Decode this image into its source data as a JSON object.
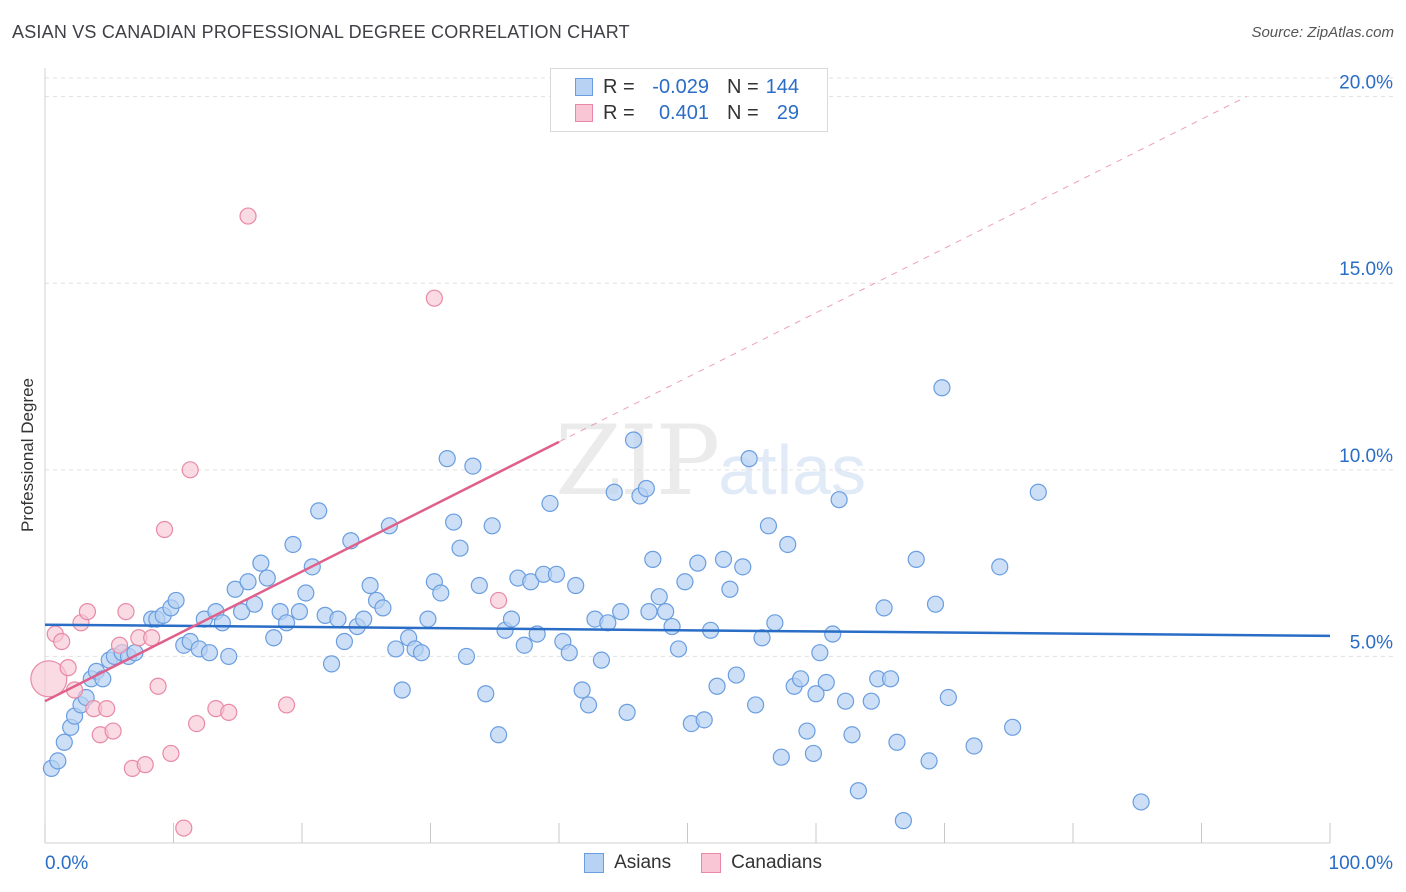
{
  "title": "ASIAN VS CANADIAN PROFESSIONAL DEGREE CORRELATION CHART",
  "source": "Source: ZipAtlas.com",
  "watermark": {
    "zip": "ZIP",
    "atlas": "atlas"
  },
  "legend": {
    "rows": [
      {
        "label": "R =",
        "r": "-0.029",
        "n_label": "N =",
        "n": "144"
      },
      {
        "label": "R =",
        "r": "0.401",
        "n_label": "N =",
        "n": "29"
      }
    ]
  },
  "bottom_legend": [
    "Asians",
    "Canadians"
  ],
  "colors": {
    "asian_fill": "#b7d2f2",
    "asian_stroke": "#6a9ee0",
    "asian_line": "#2a6dc6",
    "canadian_fill": "#f8c6d4",
    "canadian_stroke": "#e88aa7",
    "canadian_line": "#e0608c",
    "grid": "#e0e0e0",
    "tick_label": "#2a6dc6"
  },
  "chart_data": {
    "type": "scatter",
    "title": "ASIAN VS CANADIAN PROFESSIONAL DEGREE CORRELATION CHART",
    "xlabel": "",
    "ylabel": "Professional Degree",
    "xlim": [
      0,
      100
    ],
    "ylim": [
      0,
      20.5
    ],
    "x_tick_labels": [
      "0.0%",
      "100.0%"
    ],
    "y_ticks": [
      5,
      10,
      15,
      20
    ],
    "y_tick_labels": [
      "5.0%",
      "10.0%",
      "15.0%",
      "20.0%"
    ],
    "grid": "horizontal dashed",
    "legend_placement": "top-center",
    "series": [
      {
        "name": "Asians",
        "r": -0.029,
        "n": 144,
        "trend": {
          "x": [
            0,
            100
          ],
          "y": [
            5.85,
            5.55
          ],
          "style": "solid"
        },
        "points": [
          [
            0.5,
            2.0
          ],
          [
            1,
            2.2
          ],
          [
            1.5,
            2.7
          ],
          [
            2,
            3.1
          ],
          [
            2.3,
            3.4
          ],
          [
            2.8,
            3.7
          ],
          [
            3.2,
            3.9
          ],
          [
            3.6,
            4.4
          ],
          [
            4,
            4.6
          ],
          [
            4.5,
            4.4
          ],
          [
            5,
            4.9
          ],
          [
            5.4,
            5.0
          ],
          [
            6,
            5.1
          ],
          [
            6.5,
            5.0
          ],
          [
            7,
            5.1
          ],
          [
            8.3,
            6.0
          ],
          [
            8.7,
            6.0
          ],
          [
            9.2,
            6.1
          ],
          [
            9.8,
            6.3
          ],
          [
            10.2,
            6.5
          ],
          [
            10.8,
            5.3
          ],
          [
            11.3,
            5.4
          ],
          [
            12,
            5.2
          ],
          [
            12.4,
            6.0
          ],
          [
            12.8,
            5.1
          ],
          [
            13.3,
            6.2
          ],
          [
            13.8,
            5.9
          ],
          [
            14.3,
            5.0
          ],
          [
            14.8,
            6.8
          ],
          [
            15.3,
            6.2
          ],
          [
            15.8,
            7.0
          ],
          [
            16.3,
            6.4
          ],
          [
            16.8,
            7.5
          ],
          [
            17.3,
            7.1
          ],
          [
            17.8,
            5.5
          ],
          [
            18.3,
            6.2
          ],
          [
            18.8,
            5.9
          ],
          [
            19.3,
            8.0
          ],
          [
            19.8,
            6.2
          ],
          [
            20.3,
            6.7
          ],
          [
            20.8,
            7.4
          ],
          [
            21.3,
            8.9
          ],
          [
            21.8,
            6.1
          ],
          [
            22.3,
            4.8
          ],
          [
            22.8,
            6.0
          ],
          [
            23.3,
            5.4
          ],
          [
            23.8,
            8.1
          ],
          [
            24.3,
            5.8
          ],
          [
            24.8,
            6.0
          ],
          [
            25.3,
            6.9
          ],
          [
            25.8,
            6.5
          ],
          [
            26.3,
            6.3
          ],
          [
            26.8,
            8.5
          ],
          [
            27.3,
            5.2
          ],
          [
            27.8,
            4.1
          ],
          [
            28.3,
            5.5
          ],
          [
            28.8,
            5.2
          ],
          [
            29.3,
            5.1
          ],
          [
            29.8,
            6.0
          ],
          [
            30.3,
            7.0
          ],
          [
            30.8,
            6.7
          ],
          [
            31.3,
            10.3
          ],
          [
            31.8,
            8.6
          ],
          [
            32.3,
            7.9
          ],
          [
            32.8,
            5.0
          ],
          [
            33.3,
            10.1
          ],
          [
            33.8,
            6.9
          ],
          [
            34.3,
            4.0
          ],
          [
            34.8,
            8.5
          ],
          [
            35.3,
            2.9
          ],
          [
            35.8,
            5.7
          ],
          [
            36.3,
            6.0
          ],
          [
            36.8,
            7.1
          ],
          [
            37.3,
            5.3
          ],
          [
            37.8,
            7.0
          ],
          [
            38.3,
            5.6
          ],
          [
            38.8,
            7.2
          ],
          [
            39.3,
            9.1
          ],
          [
            39.8,
            7.2
          ],
          [
            40.3,
            5.4
          ],
          [
            40.8,
            5.1
          ],
          [
            41.3,
            6.9
          ],
          [
            41.8,
            4.1
          ],
          [
            42.3,
            3.7
          ],
          [
            42.8,
            6.0
          ],
          [
            43.3,
            4.9
          ],
          [
            43.8,
            5.9
          ],
          [
            44.3,
            9.4
          ],
          [
            44.8,
            6.2
          ],
          [
            45.3,
            3.5
          ],
          [
            45.8,
            10.8
          ],
          [
            46.3,
            9.3
          ],
          [
            46.8,
            9.5
          ],
          [
            47.3,
            7.6
          ],
          [
            47.8,
            6.6
          ],
          [
            48.3,
            6.2
          ],
          [
            48.8,
            5.8
          ],
          [
            49.3,
            5.2
          ],
          [
            49.8,
            7.0
          ],
          [
            50.3,
            3.2
          ],
          [
            50.8,
            7.5
          ],
          [
            51.3,
            3.3
          ],
          [
            51.8,
            5.7
          ],
          [
            52.3,
            4.2
          ],
          [
            52.8,
            7.6
          ],
          [
            53.3,
            6.8
          ],
          [
            53.8,
            4.5
          ],
          [
            54.3,
            7.4
          ],
          [
            54.8,
            10.3
          ],
          [
            55.3,
            3.7
          ],
          [
            55.8,
            5.5
          ],
          [
            56.3,
            8.5
          ],
          [
            56.8,
            5.9
          ],
          [
            57.3,
            2.3
          ],
          [
            57.8,
            8.0
          ],
          [
            58.3,
            4.2
          ],
          [
            58.8,
            4.4
          ],
          [
            59.3,
            3.0
          ],
          [
            59.8,
            2.4
          ],
          [
            60.3,
            5.1
          ],
          [
            60.8,
            4.3
          ],
          [
            61.3,
            5.6
          ],
          [
            61.8,
            9.2
          ],
          [
            62.3,
            3.8
          ],
          [
            62.8,
            2.9
          ],
          [
            63.3,
            1.4
          ],
          [
            64.3,
            3.8
          ],
          [
            64.8,
            4.4
          ],
          [
            65.3,
            6.3
          ],
          [
            65.8,
            4.4
          ],
          [
            66.3,
            2.7
          ],
          [
            66.8,
            0.6
          ],
          [
            67.8,
            7.6
          ],
          [
            68.8,
            2.2
          ],
          [
            69.3,
            6.4
          ],
          [
            69.8,
            12.2
          ],
          [
            70.3,
            3.9
          ],
          [
            72.3,
            2.6
          ],
          [
            74.3,
            7.4
          ],
          [
            75.3,
            3.1
          ],
          [
            77.3,
            9.4
          ],
          [
            85.3,
            1.1
          ],
          [
            60.0,
            4.0
          ],
          [
            47.0,
            6.2
          ]
        ]
      },
      {
        "name": "Canadians",
        "r": 0.401,
        "n": 29,
        "trend": {
          "x": [
            0,
            40
          ],
          "y": [
            3.8,
            10.75
          ],
          "style": "solid",
          "extension": {
            "x": [
              40,
              93.5
            ],
            "y": [
              10.75,
              20.0
            ],
            "style": "dashed"
          }
        },
        "points": [
          [
            0.3,
            4.4
          ],
          [
            0.8,
            5.6
          ],
          [
            1.3,
            5.4
          ],
          [
            1.8,
            4.7
          ],
          [
            2.3,
            4.1
          ],
          [
            2.8,
            5.9
          ],
          [
            3.3,
            6.2
          ],
          [
            3.8,
            3.6
          ],
          [
            4.3,
            2.9
          ],
          [
            4.8,
            3.6
          ],
          [
            5.3,
            3.0
          ],
          [
            5.8,
            5.3
          ],
          [
            6.3,
            6.2
          ],
          [
            6.8,
            2.0
          ],
          [
            7.3,
            5.5
          ],
          [
            7.8,
            2.1
          ],
          [
            8.3,
            5.5
          ],
          [
            8.8,
            4.2
          ],
          [
            9.3,
            8.4
          ],
          [
            9.8,
            2.4
          ],
          [
            10.8,
            0.4
          ],
          [
            11.3,
            10.0
          ],
          [
            11.8,
            3.2
          ],
          [
            13.3,
            3.6
          ],
          [
            14.3,
            3.5
          ],
          [
            15.8,
            16.8
          ],
          [
            18.8,
            3.7
          ],
          [
            30.3,
            14.6
          ],
          [
            35.3,
            6.5
          ]
        ]
      }
    ]
  }
}
